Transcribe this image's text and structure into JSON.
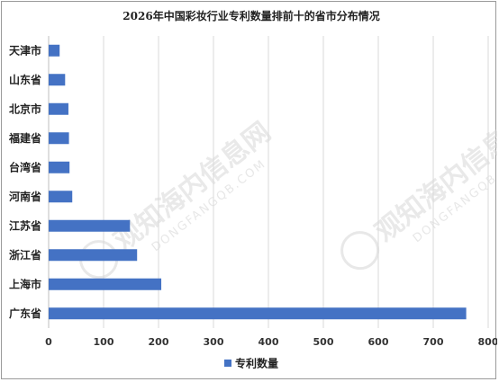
{
  "watermark": {
    "text": "观知海内信息网",
    "sub": "DONGFANGQB.COM"
  },
  "chart_data": {
    "type": "bar",
    "orientation": "horizontal",
    "title": "2026年中国彩妆行业专利数量排前十的省市分布情况",
    "categories": [
      "天津市",
      "山东省",
      "北京市",
      "福建省",
      "台湾省",
      "河南省",
      "江苏省",
      "浙江省",
      "上海市",
      "广东省"
    ],
    "series": [
      {
        "name": "专利数量",
        "values": [
          20,
          30,
          36,
          37,
          38,
          43,
          148,
          161,
          205,
          760
        ],
        "color": "#4472c4"
      }
    ],
    "xlim": [
      0,
      800
    ],
    "xticks": [
      0,
      100,
      200,
      300,
      400,
      500,
      600,
      700,
      800
    ],
    "grid": true,
    "legend": "bottom"
  }
}
